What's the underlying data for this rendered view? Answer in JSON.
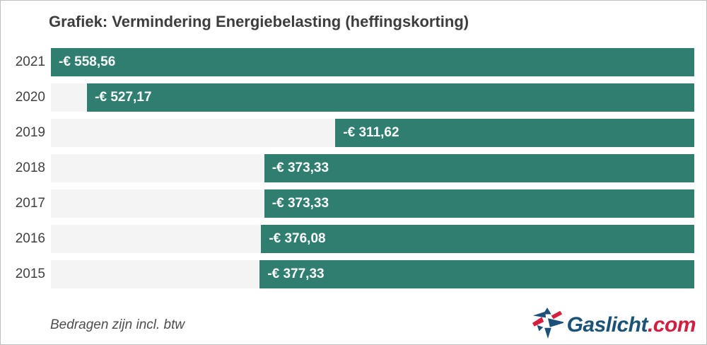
{
  "chart_data": {
    "type": "bar",
    "orientation": "horizontal",
    "title": "Grafiek: Vermindering Energiebelasting (heffingskorting)",
    "categories": [
      "2021",
      "2020",
      "2019",
      "2018",
      "2017",
      "2016",
      "2015"
    ],
    "values": [
      -558.56,
      -527.17,
      -311.62,
      -373.33,
      -373.33,
      -376.08,
      -377.33
    ],
    "value_labels": [
      "-€ 558,56",
      "-€ 527,17",
      "-€ 311,62",
      "-€ 373,33",
      "-€ 373,33",
      "-€ 376,08",
      "-€ 377,33"
    ],
    "xlim": [
      0,
      558.56
    ],
    "bars_anchored": "right",
    "grid": false,
    "legend": false,
    "bar_color": "#2f7e70",
    "track_color": "#f4f4f4",
    "note": "Bedragen zijn incl. btw"
  },
  "footer": {
    "logo": {
      "name": "Gaslicht.com",
      "text_main": "Gaslicht",
      "text_suffix": ".com",
      "color_main": "#1a5377",
      "color_suffix": "#d21e40",
      "icon_blue": "#1d5078",
      "icon_red": "#d51f3f"
    }
  }
}
